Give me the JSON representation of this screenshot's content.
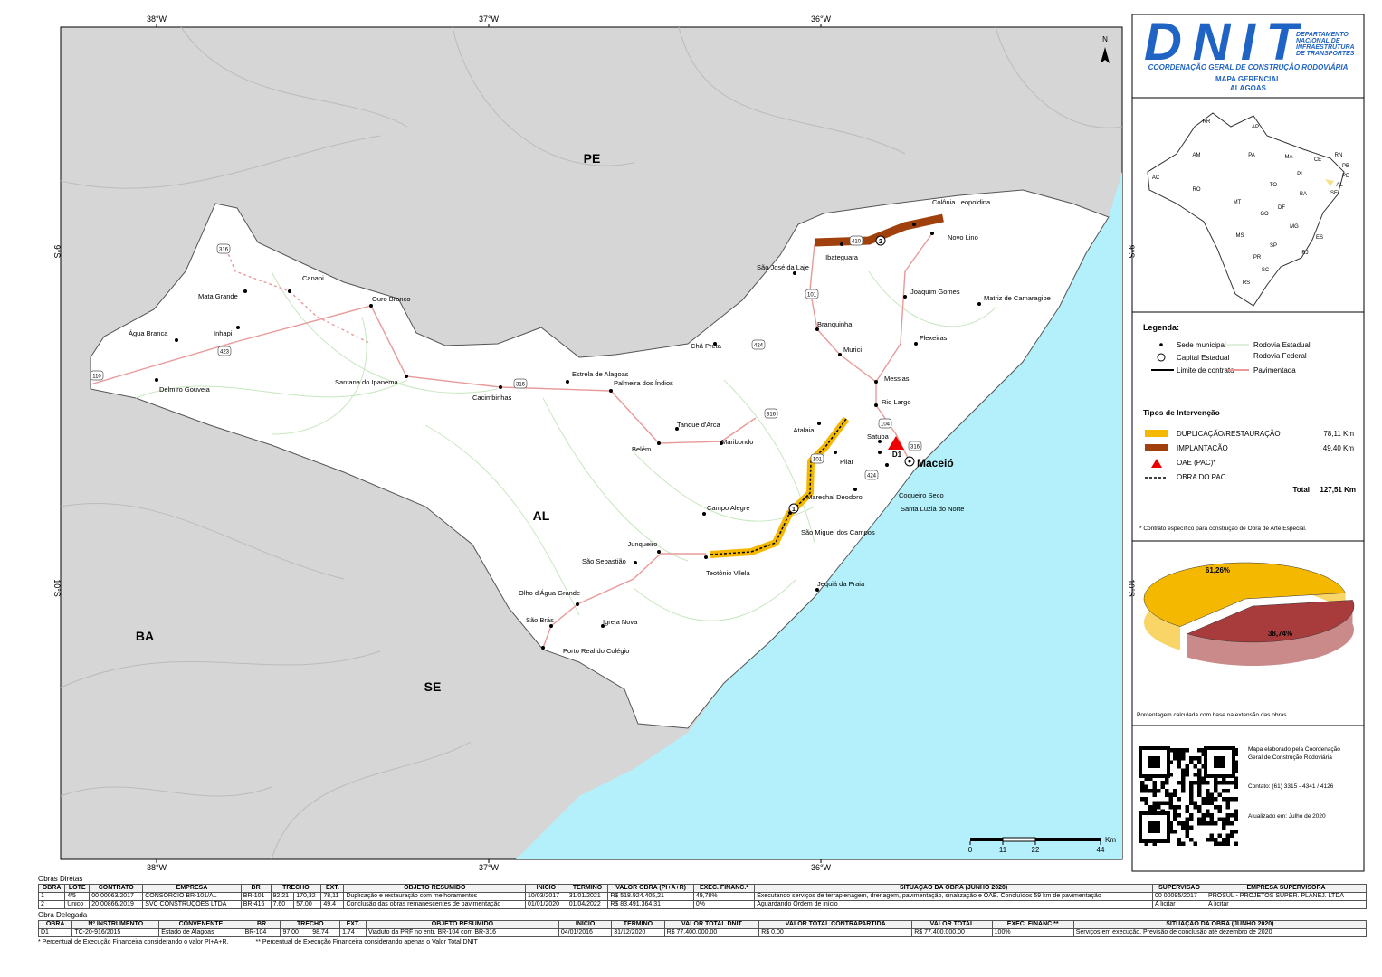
{
  "map": {
    "lon_labels": [
      "38°W",
      "37°W",
      "36°W"
    ],
    "lat_labels": [
      "9°S",
      "10°S"
    ],
    "north": "N",
    "regions": [
      "PE",
      "AL",
      "BA",
      "SE"
    ],
    "places": [
      "Colônia Leopoldina",
      "Novo Lino",
      "Ibateguara",
      "São José da Laje",
      "Joaquim Gomes",
      "Matriz de Camaragibe",
      "Branquinha",
      "Flexeiras",
      "Chã Preta",
      "Murici",
      "Messias",
      "Rio Largo",
      "Atalaia",
      "Satuba",
      "Pilar",
      "Marechal Deodoro",
      "Coqueiro Seco",
      "Santa Luzia do Norte",
      "São Miguel dos Campos",
      "Campo Alegre",
      "Teotônio Vilela",
      "Junqueiro",
      "São Sebastião",
      "Jequiá da Praia",
      "Olho d'Água Grande",
      "São Brás",
      "Igreja Nova",
      "Porto Real do Colégio",
      "Belém",
      "Maribondo",
      "Tanque d'Arca",
      "Palmeira dos Índios",
      "Estrela de Alagoas",
      "Cacimbinhas",
      "Santana do Ipanema",
      "Ouro Branco",
      "Canapi",
      "Mata Grande",
      "Inhapi",
      "Água Branca",
      "Delmiro Gouveia"
    ],
    "capital": "Maceió",
    "shields": [
      "110",
      "316",
      "423",
      "316",
      "101",
      "101",
      "424",
      "424",
      "316",
      "104",
      "316",
      "410"
    ],
    "works": [
      "1",
      "2",
      "D1"
    ],
    "scale": {
      "unit": "Km",
      "ticks": [
        0,
        11,
        22,
        44
      ]
    }
  },
  "header": {
    "logo": "DNIT",
    "org": [
      "DEPARTAMENTO",
      "NACIONAL DE",
      "INFRAESTRUTURA",
      "DE TRANSPORTES"
    ],
    "subtitle": "COORDENAÇÃO GERAL DE CONSTRUÇÃO RODOVIÁRIA",
    "title": "MAPA GERENCIAL",
    "state": "ALAGOAS"
  },
  "inset": {
    "states": [
      "RR",
      "AP",
      "AM",
      "PA",
      "MA",
      "CE",
      "RN",
      "PB",
      "PE",
      "AL",
      "SE",
      "PI",
      "TO",
      "BA",
      "AC",
      "RO",
      "MT",
      "DF",
      "GO",
      "MG",
      "ES",
      "MS",
      "SP",
      "RJ",
      "PR",
      "SC",
      "RS"
    ]
  },
  "legend": {
    "title": "Legenda:",
    "items": [
      "Sede municipal",
      "Capital Estadual",
      "Limite de contrato",
      "Rodovia Estadual",
      "Rodovia Federal",
      "Pavimentada"
    ]
  },
  "interventions": {
    "title": "Tipos de Intervenção",
    "items": [
      {
        "label": "DUPLICAÇÃO/RESTAURAÇÃO",
        "km": "78,11 Km"
      },
      {
        "label": "IMPLANTAÇÃO",
        "km": "49,40 Km"
      },
      {
        "label": "OAE (PAC)*"
      },
      {
        "label": "OBRA DO PAC"
      }
    ],
    "total_label": "Total",
    "total": "127,51 Km",
    "note": "* Contrato específico para construção de Obra de Arte Especial."
  },
  "pie": {
    "type": "pie",
    "values": [
      61.26,
      38.74
    ],
    "value_labels": [
      "61,26%",
      "38,74%"
    ],
    "colors": [
      "#f5b800",
      "#a83c3c"
    ],
    "note": "Porcentagem calculada com base na extensão das obras."
  },
  "credits": {
    "made_by": [
      "Mapa elaborado pela Coordenação",
      "Geral de Construção Rodoviária"
    ],
    "contact": "Contato: (61) 3315 - 4341 / 4126",
    "updated": "Atualizado em: Julho de 2020"
  },
  "direct": {
    "title": "Obras Diretas",
    "headers": [
      "OBRA",
      "LOTE",
      "CONTRATO",
      "EMPRESA",
      "BR",
      "TRECHO",
      "EXT.",
      "OBJETO RESUMIDO",
      "INÍCIO",
      "TÉRMINO",
      "VALOR OBRA (PI+A+R)",
      "EXEC. FINANC.*",
      "SITUAÇÃO DA OBRA (JUNHO 2020)",
      "SUPERVISÃO",
      "EMPRESA SUPERVISORA"
    ],
    "rows": [
      [
        "1",
        "4/5",
        "00 00063/2017",
        "CONSÓRCIO BR-101/AL",
        "BR-101",
        "92,21",
        "170,32",
        "78,11",
        "Duplicação e restauração com melhoramentos",
        "10/03/2017",
        "31/01/2021",
        "R$ 518.924.405,21",
        "49,78%",
        "Executando serviços de terraplenagem, drenagem, pavimentação, sinalização e OAE. Concluídos 59 km de pavimentação",
        "00 00095/2017",
        "PROSUL - PROJETOS SUPER. PLANEJ. LTDA"
      ],
      [
        "2",
        "Único",
        "20 00866/2019",
        "SVC CONSTRUÇÕES LTDA",
        "BR-416",
        "7,60",
        "57,00",
        "49,4",
        "Conclusão das obras remanescentes de pavimentação",
        "01/01/2020",
        "01/04/2022",
        "R$ 83.491.364,31",
        "0%",
        "Aguardando Ordem de início",
        "A licitar",
        "A licitar"
      ]
    ]
  },
  "delegated": {
    "title": "Obra Delegada",
    "headers": [
      "OBRA",
      "Nº INSTRUMENTO",
      "CONVENENTE",
      "BR",
      "TRECHO",
      "EXT.",
      "OBJETO RESUMIDO",
      "INÍCIO",
      "TÉRMINO",
      "VALOR TOTAL DNIT",
      "VALOR TOTAL CONTRAPARTIDA",
      "VALOR TOTAL",
      "EXEC. FINANC.**",
      "SITUAÇÃO DA OBRA (JUNHO 2020)"
    ],
    "rows": [
      [
        "D1",
        "TC-20-916/2015",
        "Estado de Alagoas",
        "BR-104",
        "97,00",
        "98,74",
        "1,74",
        "Viaduto da PRF no entr. BR-104 com BR-316",
        "04/01/2016",
        "31/12/2020",
        "R$ 77.400.000,00",
        "R$ 0,00",
        "R$ 77.400.000,00",
        "100%",
        "Serviços em execução. Previsão de conclusão até dezembro de 2020"
      ]
    ]
  },
  "footnotes": [
    "* Percentual de Execução Financeira considerando o valor PI+A+R.",
    "** Percentual de Execução Financeira considerando apenas o Valor Total DNIT"
  ]
}
